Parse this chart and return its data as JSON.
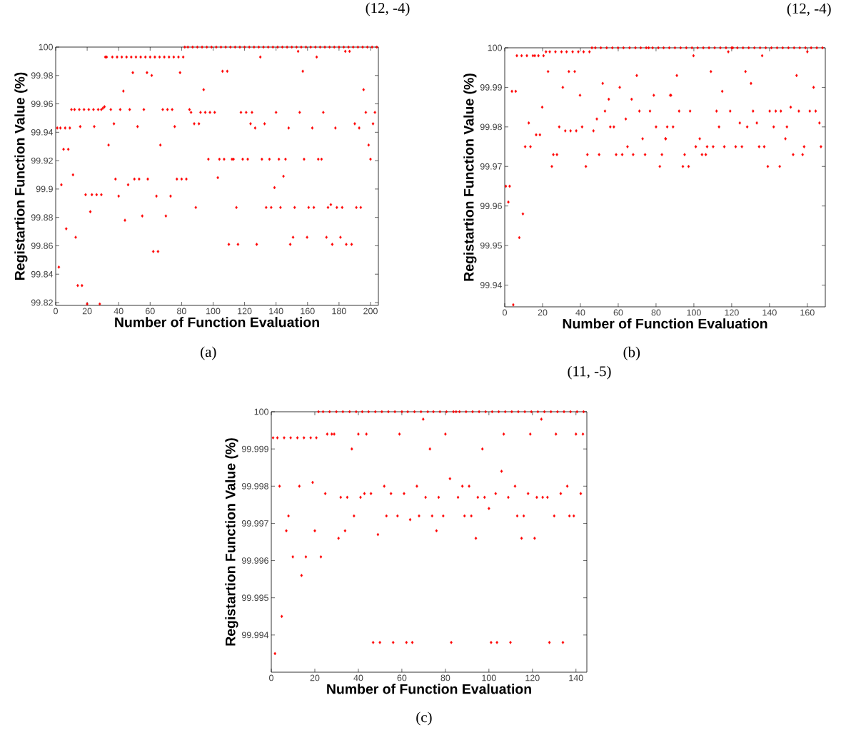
{
  "chart_data": [
    {
      "type": "scatter",
      "title": "(12, -4)",
      "xlabel": "Number of Function Evaluation",
      "ylabel": "Registartion Function Value (%)",
      "annotations": [
        "(a)"
      ],
      "color": "#ff0000",
      "marker": "diamond",
      "xlim": [
        0,
        205
      ],
      "ylim": [
        99.818,
        100
      ],
      "xticks": [
        0,
        20,
        40,
        60,
        80,
        100,
        120,
        140,
        160,
        180,
        200
      ],
      "yticks": [
        99.82,
        99.84,
        99.86,
        99.88,
        99.9,
        99.92,
        99.94,
        99.96,
        99.98,
        100
      ],
      "x": [
        1,
        3,
        6,
        9,
        15.6,
        24.5,
        5,
        8,
        3.6,
        6.7,
        2,
        11,
        10,
        12,
        15,
        18,
        21,
        24,
        27,
        29,
        35,
        41,
        47,
        56,
        68,
        71,
        74,
        85,
        30,
        31,
        12.7,
        14,
        16.7,
        19,
        23,
        26,
        29,
        22,
        20,
        28,
        31.5,
        32.4,
        36,
        39,
        42,
        45,
        48,
        51,
        54,
        57,
        60,
        63,
        66,
        69,
        72,
        75,
        78,
        81,
        33.6,
        66.5,
        37,
        88,
        91,
        38,
        50,
        53,
        58.5,
        77,
        80,
        83,
        40,
        64,
        73,
        44,
        43,
        46,
        49,
        58,
        79,
        61,
        52,
        75.6,
        55,
        70,
        62,
        65,
        82,
        84,
        87,
        90,
        93,
        96,
        99,
        102,
        105,
        108,
        111,
        114,
        117,
        120,
        123,
        126,
        129,
        132,
        135,
        138,
        141,
        144,
        147,
        150,
        153,
        156,
        159,
        162,
        165,
        168,
        171,
        174,
        177,
        180,
        183,
        186,
        189,
        192,
        195,
        198,
        201,
        204,
        86,
        92,
        95,
        98,
        101,
        89,
        94,
        97,
        104,
        103,
        154,
        184,
        186.7,
        130,
        165.8,
        106,
        109,
        157,
        195.6,
        117.7,
        121,
        124.7,
        140,
        155,
        170,
        197,
        202.8,
        123.8,
        132.7,
        190,
        201.6,
        126.7,
        148,
        163,
        177.7,
        192.8,
        198.8,
        107,
        112,
        113,
        118.8,
        122,
        131,
        135.8,
        141.8,
        146,
        157.8,
        166.8,
        168.9,
        200,
        144.7,
        139,
        114.8,
        133.7,
        136.9,
        142.8,
        151.8,
        160.7,
        164,
        173,
        178.6,
        182,
        191,
        193.8,
        174.8,
        150.8,
        159.7,
        172,
        180.9,
        110,
        115.8,
        127.7,
        149,
        175.7,
        184.6,
        188
      ],
      "values": [
        99.943,
        99.943,
        99.943,
        99.943,
        99.944,
        99.944,
        99.928,
        99.928,
        99.903,
        99.872,
        99.845,
        99.91,
        99.956,
        99.956,
        99.956,
        99.956,
        99.956,
        99.956,
        99.956,
        99.956,
        99.956,
        99.956,
        99.956,
        99.956,
        99.956,
        99.956,
        99.956,
        99.956,
        99.957,
        99.958,
        99.866,
        99.832,
        99.832,
        99.896,
        99.896,
        99.896,
        99.896,
        99.884,
        99.819,
        99.819,
        99.993,
        99.993,
        99.993,
        99.993,
        99.993,
        99.993,
        99.993,
        99.993,
        99.993,
        99.993,
        99.993,
        99.993,
        99.993,
        99.993,
        99.993,
        99.993,
        99.993,
        99.993,
        99.931,
        99.931,
        99.946,
        99.946,
        99.946,
        99.907,
        99.907,
        99.907,
        99.907,
        99.907,
        99.907,
        99.907,
        99.895,
        99.895,
        99.895,
        99.878,
        99.969,
        99.903,
        99.982,
        99.982,
        99.982,
        99.98,
        99.944,
        99.944,
        99.881,
        99.881,
        99.856,
        99.856,
        100,
        100,
        100,
        100,
        100,
        100,
        100,
        100,
        100,
        100,
        100,
        100,
        100,
        100,
        100,
        100,
        100,
        100,
        100,
        100,
        100,
        100,
        100,
        100,
        100,
        100,
        100,
        100,
        100,
        100,
        100,
        100,
        100,
        100,
        100,
        100,
        100,
        100,
        100,
        100,
        100,
        100,
        99.954,
        99.954,
        99.954,
        99.954,
        99.954,
        99.887,
        99.97,
        99.921,
        99.921,
        99.908,
        99.997,
        99.997,
        99.997,
        99.993,
        99.993,
        99.983,
        99.983,
        99.983,
        99.97,
        99.954,
        99.954,
        99.954,
        99.954,
        99.954,
        99.954,
        99.954,
        99.954,
        99.946,
        99.946,
        99.946,
        99.946,
        99.943,
        99.943,
        99.943,
        99.943,
        99.943,
        99.931,
        99.921,
        99.921,
        99.921,
        99.921,
        99.921,
        99.921,
        99.921,
        99.921,
        99.921,
        99.921,
        99.921,
        99.921,
        99.921,
        99.909,
        99.901,
        99.887,
        99.887,
        99.887,
        99.887,
        99.887,
        99.887,
        99.887,
        99.887,
        99.887,
        99.887,
        99.887,
        99.887,
        99.889,
        99.866,
        99.866,
        99.866,
        99.866,
        99.861,
        99.861,
        99.861,
        99.861,
        99.861,
        99.861,
        99.861
      ]
    },
    {
      "type": "scatter",
      "title": "(12, -4)",
      "xlabel": "Number of Function Evaluation",
      "ylabel": "Registartion Function Value (%)",
      "annotations": [
        "(b)"
      ],
      "color": "#ff0000",
      "marker": "diamond",
      "xlim": [
        0,
        169.5
      ],
      "ylim": [
        99.9345,
        100
      ],
      "xticks": [
        0,
        20,
        40,
        60,
        80,
        100,
        120,
        140,
        160
      ],
      "yticks": [
        99.94,
        99.95,
        99.96,
        99.97,
        99.98,
        99.99,
        100
      ],
      "x": [
        0.6,
        2.6,
        1.9,
        3.8,
        5.8,
        4.5,
        6.4,
        8.9,
        11.7,
        14.9,
        17.8,
        20.5,
        15.9,
        7.7,
        9.6,
        10.8,
        13.6,
        12.7,
        16.6,
        18.6,
        19.8,
        21.8,
        23.8,
        26.8,
        30,
        32.7,
        35.9,
        38.9,
        41.7,
        44.8,
        22.9,
        33.9,
        37,
        24.9,
        42.9,
        82,
        25.7,
        27.6,
        43.7,
        28.8,
        40.9,
        57.7,
        30.7,
        32,
        34.8,
        37.8,
        46.9,
        39.8,
        78.8,
        87.5,
        46.1,
        47.9,
        50.8,
        53.9,
        56.9,
        59.9,
        62.8,
        66,
        69.1,
        71.9,
        74.8,
        76.1,
        78.2,
        81.2,
        84,
        87,
        90,
        93,
        96,
        99,
        102,
        105,
        108,
        111,
        114,
        117,
        120,
        123,
        126,
        129,
        132,
        135,
        138,
        141,
        144,
        147,
        150,
        153,
        156,
        159,
        162,
        165,
        168,
        120.6,
        49.9,
        58.9,
        62.1,
        67.9,
        74.2,
        83.1,
        48.7,
        64,
        51.8,
        53,
        71.2,
        76.8,
        55,
        67.1,
        55.8,
        80,
        60.8,
        64.9,
        69.8,
        72.9,
        85,
        99.8,
        136.1,
        118.2,
        160,
        91,
        154.3,
        109,
        127.3,
        130.2,
        163.3,
        115,
        87.9,
        92.2,
        98,
        112,
        119.2,
        131.3,
        140.1,
        143.3,
        146,
        155.5,
        161.3,
        164.4,
        151.2,
        85.9,
        89,
        113.3,
        128.2,
        142.2,
        149.2,
        124.3,
        133.3,
        166.4,
        85.1,
        103.1,
        148.4,
        101,
        107,
        110.2,
        116.1,
        122.1,
        125.4,
        134.5,
        137.2,
        158.3,
        167.2,
        95.1,
        104.3,
        106.3,
        152.5,
        157.5,
        94.2,
        97.2,
        139.1,
        145.4
      ],
      "values": [
        99.965,
        99.965,
        99.961,
        99.989,
        99.989,
        99.935,
        99.998,
        99.998,
        99.998,
        99.998,
        99.998,
        99.998,
        99.998,
        99.952,
        99.958,
        99.975,
        99.975,
        99.981,
        99.978,
        99.978,
        99.985,
        99.999,
        99.999,
        99.999,
        99.999,
        99.999,
        99.999,
        99.999,
        99.999,
        99.999,
        99.994,
        99.994,
        99.994,
        99.97,
        99.97,
        99.97,
        99.973,
        99.973,
        99.973,
        99.98,
        99.98,
        99.98,
        99.99,
        99.979,
        99.979,
        99.979,
        99.979,
        99.988,
        99.988,
        99.988,
        100,
        100,
        100,
        100,
        100,
        100,
        100,
        100,
        100,
        100,
        100,
        100,
        100,
        100,
        100,
        100,
        100,
        100,
        100,
        100,
        100,
        100,
        100,
        100,
        100,
        100,
        100,
        100,
        100,
        100,
        100,
        100,
        100,
        100,
        100,
        100,
        100,
        100,
        100,
        100,
        100,
        100,
        100,
        100,
        99.973,
        99.973,
        99.973,
        99.973,
        99.973,
        99.973,
        99.982,
        99.982,
        99.991,
        99.984,
        99.984,
        99.984,
        99.987,
        99.987,
        99.98,
        99.98,
        99.99,
        99.975,
        99.993,
        99.977,
        99.977,
        99.998,
        99.998,
        99.999,
        99.999,
        99.993,
        99.993,
        99.994,
        99.994,
        99.991,
        99.99,
        99.989,
        99.988,
        99.984,
        99.984,
        99.984,
        99.984,
        99.984,
        99.984,
        99.984,
        99.984,
        99.984,
        99.984,
        99.984,
        99.985,
        99.98,
        99.98,
        99.98,
        99.98,
        99.98,
        99.98,
        99.981,
        99.981,
        99.981,
        99.977,
        99.977,
        99.977,
        99.975,
        99.975,
        99.975,
        99.975,
        99.975,
        99.975,
        99.975,
        99.975,
        99.975,
        99.975,
        99.973,
        99.973,
        99.973,
        99.973,
        99.973,
        99.97,
        99.97,
        99.97,
        99.97
      ]
    },
    {
      "type": "scatter",
      "title": "(11, -5)",
      "xlabel": "Number of Function Evaluation",
      "ylabel": "Registartion Function Value (%)",
      "annotations": [
        "(c)"
      ],
      "color": "#ff0000",
      "marker": "diamond",
      "xlim": [
        0,
        145
      ],
      "ylim": [
        99.993,
        100
      ],
      "xticks": [
        0,
        20,
        40,
        60,
        80,
        100,
        120,
        140
      ],
      "yticks": [
        99.994,
        99.995,
        99.996,
        99.997,
        99.998,
        99.999,
        100
      ],
      "x": [
        0.8,
        2.8,
        5.9,
        8.9,
        12,
        15,
        18.1,
        20.7,
        1.7,
        4.8,
        3.8,
        12.9,
        51.9,
        66.9,
        87.8,
        90.9,
        112,
        136,
        6.9,
        20,
        33.9,
        75.9,
        7.9,
        38,
        52.9,
        58,
        67.9,
        73.9,
        79,
        88.8,
        91.9,
        113,
        116,
        130,
        137,
        139,
        9.9,
        15.9,
        22.8,
        13.9,
        19,
        21.7,
        23.8,
        26.8,
        29.9,
        32.9,
        36,
        39,
        41.8,
        44.7,
        47.8,
        50.8,
        53.8,
        56.8,
        60,
        62.7,
        65.8,
        68.8,
        71.9,
        74.5,
        77.5,
        80.5,
        83.7,
        84.9,
        86.5,
        89.5,
        92.5,
        95.5,
        98.5,
        101.5,
        104.5,
        107.5,
        110.5,
        113.5,
        116.5,
        119.5,
        122.5,
        125.5,
        128.5,
        131.5,
        134.5,
        137.5,
        140.5,
        143.5,
        25.7,
        27.8,
        28.9,
        40,
        43.7,
        58.9,
        80,
        106.8,
        119,
        130.8,
        140,
        143.2,
        24.8,
        42.8,
        45.8,
        55,
        61,
        103.1,
        118,
        133,
        142.2,
        31.9,
        34.9,
        41,
        70.9,
        76.9,
        85.8,
        94.9,
        98,
        108.9,
        122,
        124.7,
        126.9,
        30.9,
        94,
        115,
        121,
        37,
        72.9,
        97,
        46.8,
        49.9,
        56,
        62.1,
        64.8,
        82.7,
        101,
        103.7,
        109.9,
        127.8,
        134,
        49,
        63.8,
        69.8,
        124.1,
        105.8,
        82.1,
        100
      ],
      "values": [
        99.9993,
        99.9993,
        99.9993,
        99.9993,
        99.9993,
        99.9993,
        99.9993,
        99.9993,
        99.9935,
        99.9945,
        99.998,
        99.998,
        99.998,
        99.998,
        99.998,
        99.998,
        99.998,
        99.998,
        99.9968,
        99.9968,
        99.9968,
        99.9968,
        99.9972,
        99.9972,
        99.9972,
        99.9972,
        99.9972,
        99.9972,
        99.9972,
        99.9972,
        99.9972,
        99.9972,
        99.9972,
        99.9972,
        99.9972,
        99.9972,
        99.9961,
        99.9961,
        99.9961,
        99.9956,
        99.9981,
        100,
        100,
        100,
        100,
        100,
        100,
        100,
        100,
        100,
        100,
        100,
        100,
        100,
        100,
        100,
        100,
        100,
        100,
        100,
        100,
        100,
        100,
        100,
        100,
        100,
        100,
        100,
        100,
        100,
        100,
        100,
        100,
        100,
        100,
        100,
        100,
        100,
        100,
        100,
        100,
        100,
        100,
        100,
        99.9994,
        99.9994,
        99.9994,
        99.9994,
        99.9994,
        99.9994,
        99.9994,
        99.9994,
        99.9994,
        99.9994,
        99.9994,
        99.9994,
        99.9978,
        99.9978,
        99.9978,
        99.9978,
        99.9978,
        99.9978,
        99.9978,
        99.9978,
        99.9978,
        99.9977,
        99.9977,
        99.9977,
        99.9977,
        99.9977,
        99.9977,
        99.9977,
        99.9977,
        99.9977,
        99.9977,
        99.9977,
        99.9977,
        99.9966,
        99.9966,
        99.9966,
        99.9966,
        99.999,
        99.999,
        99.999,
        99.9938,
        99.9938,
        99.9938,
        99.9938,
        99.9938,
        99.9938,
        99.9938,
        99.9938,
        99.9938,
        99.9938,
        99.9938,
        99.9967,
        99.9971,
        99.9998,
        99.9998,
        99.9984,
        99.9982,
        99.9974
      ]
    }
  ]
}
